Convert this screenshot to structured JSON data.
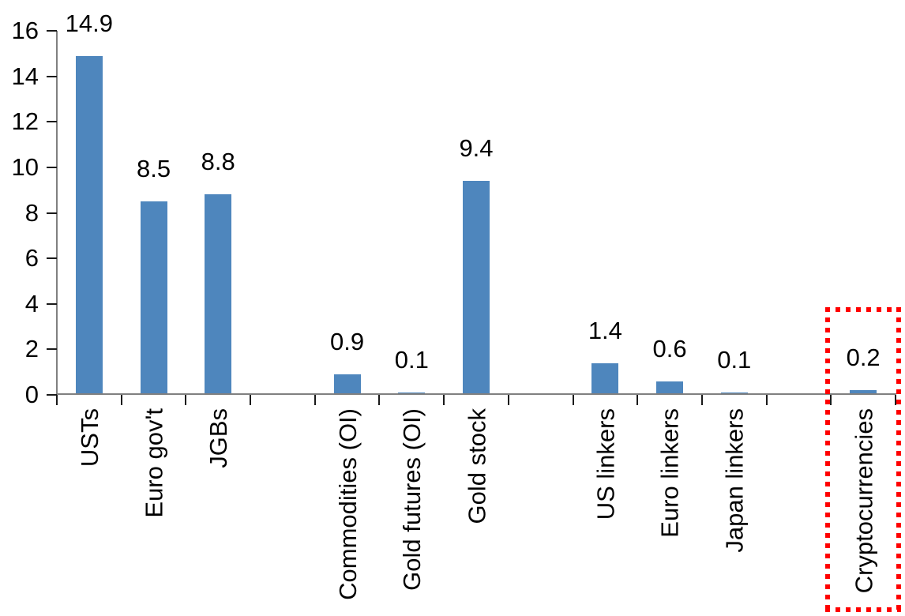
{
  "chart_data": {
    "type": "bar",
    "title": "",
    "xlabel": "",
    "ylabel": "",
    "categories": [
      "USTs",
      "Euro gov't",
      "JGBs",
      "",
      "Commodities (OI)",
      "Gold futures (OI)",
      "Gold stock",
      "",
      "US linkers",
      "Euro linkers",
      "Japan linkers",
      "",
      "Cryptocurrencies"
    ],
    "values": [
      14.9,
      8.5,
      8.8,
      null,
      0.9,
      0.1,
      9.4,
      null,
      1.4,
      0.6,
      0.1,
      null,
      0.2
    ],
    "value_labels": [
      "14.9",
      "8.5",
      "8.8",
      "",
      "0.9",
      "0.1",
      "9.4",
      "",
      "1.4",
      "0.6",
      "0.1",
      "",
      "0.2"
    ],
    "y_ticks": [
      0,
      2,
      4,
      6,
      8,
      10,
      12,
      14,
      16
    ],
    "ylim": [
      0,
      16
    ],
    "grid": false,
    "legend": false,
    "bar_color": "#4E86BD",
    "axis_color": "#808080",
    "tick_color": "#1A1A1A",
    "text_color": "#000000",
    "highlight": {
      "category": "Cryptocurrencies",
      "value": 0.2,
      "style": "red-dotted-box",
      "color": "#FF0000"
    }
  }
}
